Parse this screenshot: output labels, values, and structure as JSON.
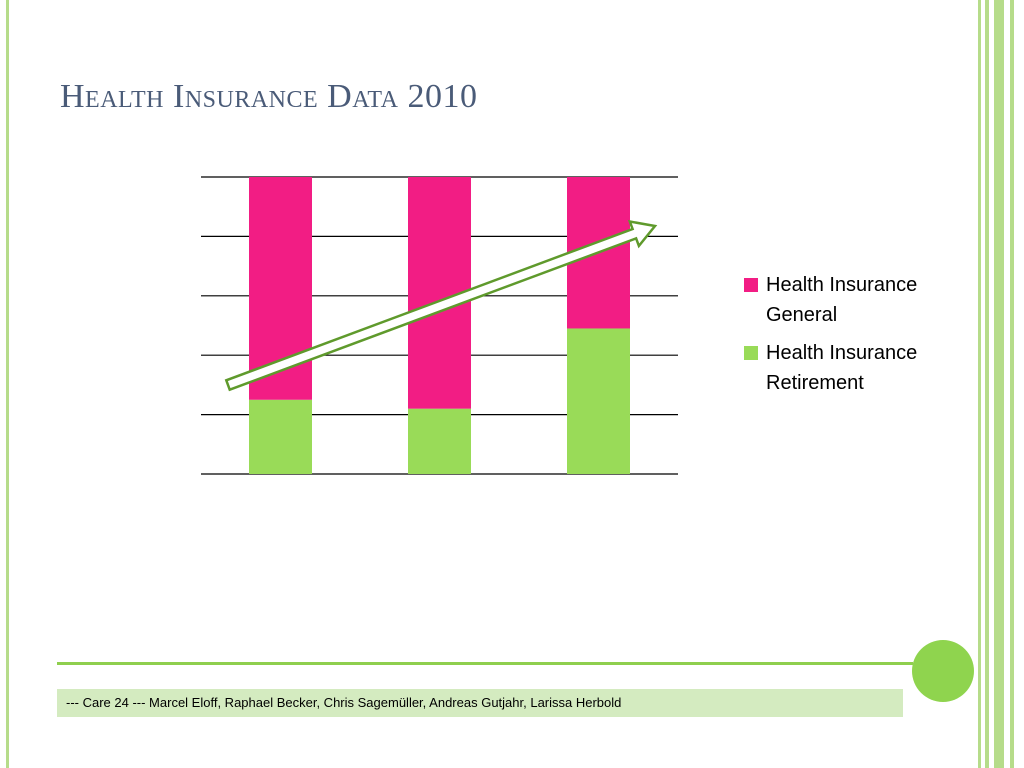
{
  "slide": {
    "title": "Health Insurance Data 2010",
    "footer_text": "--- Care 24 --- Marcel Eloff, Raphael Becker, Chris Sagemüller, Andreas Gutjahr, Larissa Herbold"
  },
  "colors": {
    "general": "#f21d84",
    "retirement": "#99db58",
    "arrow_stroke": "#5f9a2c",
    "accent_green": "#8fcf4e"
  },
  "chart_data": {
    "type": "bar",
    "stacked": true,
    "categories": [
      "",
      "",
      ""
    ],
    "series": [
      {
        "name": "Health Insurance Retirement",
        "values": [
          25,
          22,
          49
        ]
      },
      {
        "name": "Health Insurance General",
        "values": [
          75,
          78,
          51
        ]
      }
    ],
    "ylim": [
      0,
      100
    ],
    "grid": true,
    "legend_position": "right",
    "annotation": "upward-trend-arrow",
    "title": "",
    "xlabel": "",
    "ylabel": ""
  }
}
